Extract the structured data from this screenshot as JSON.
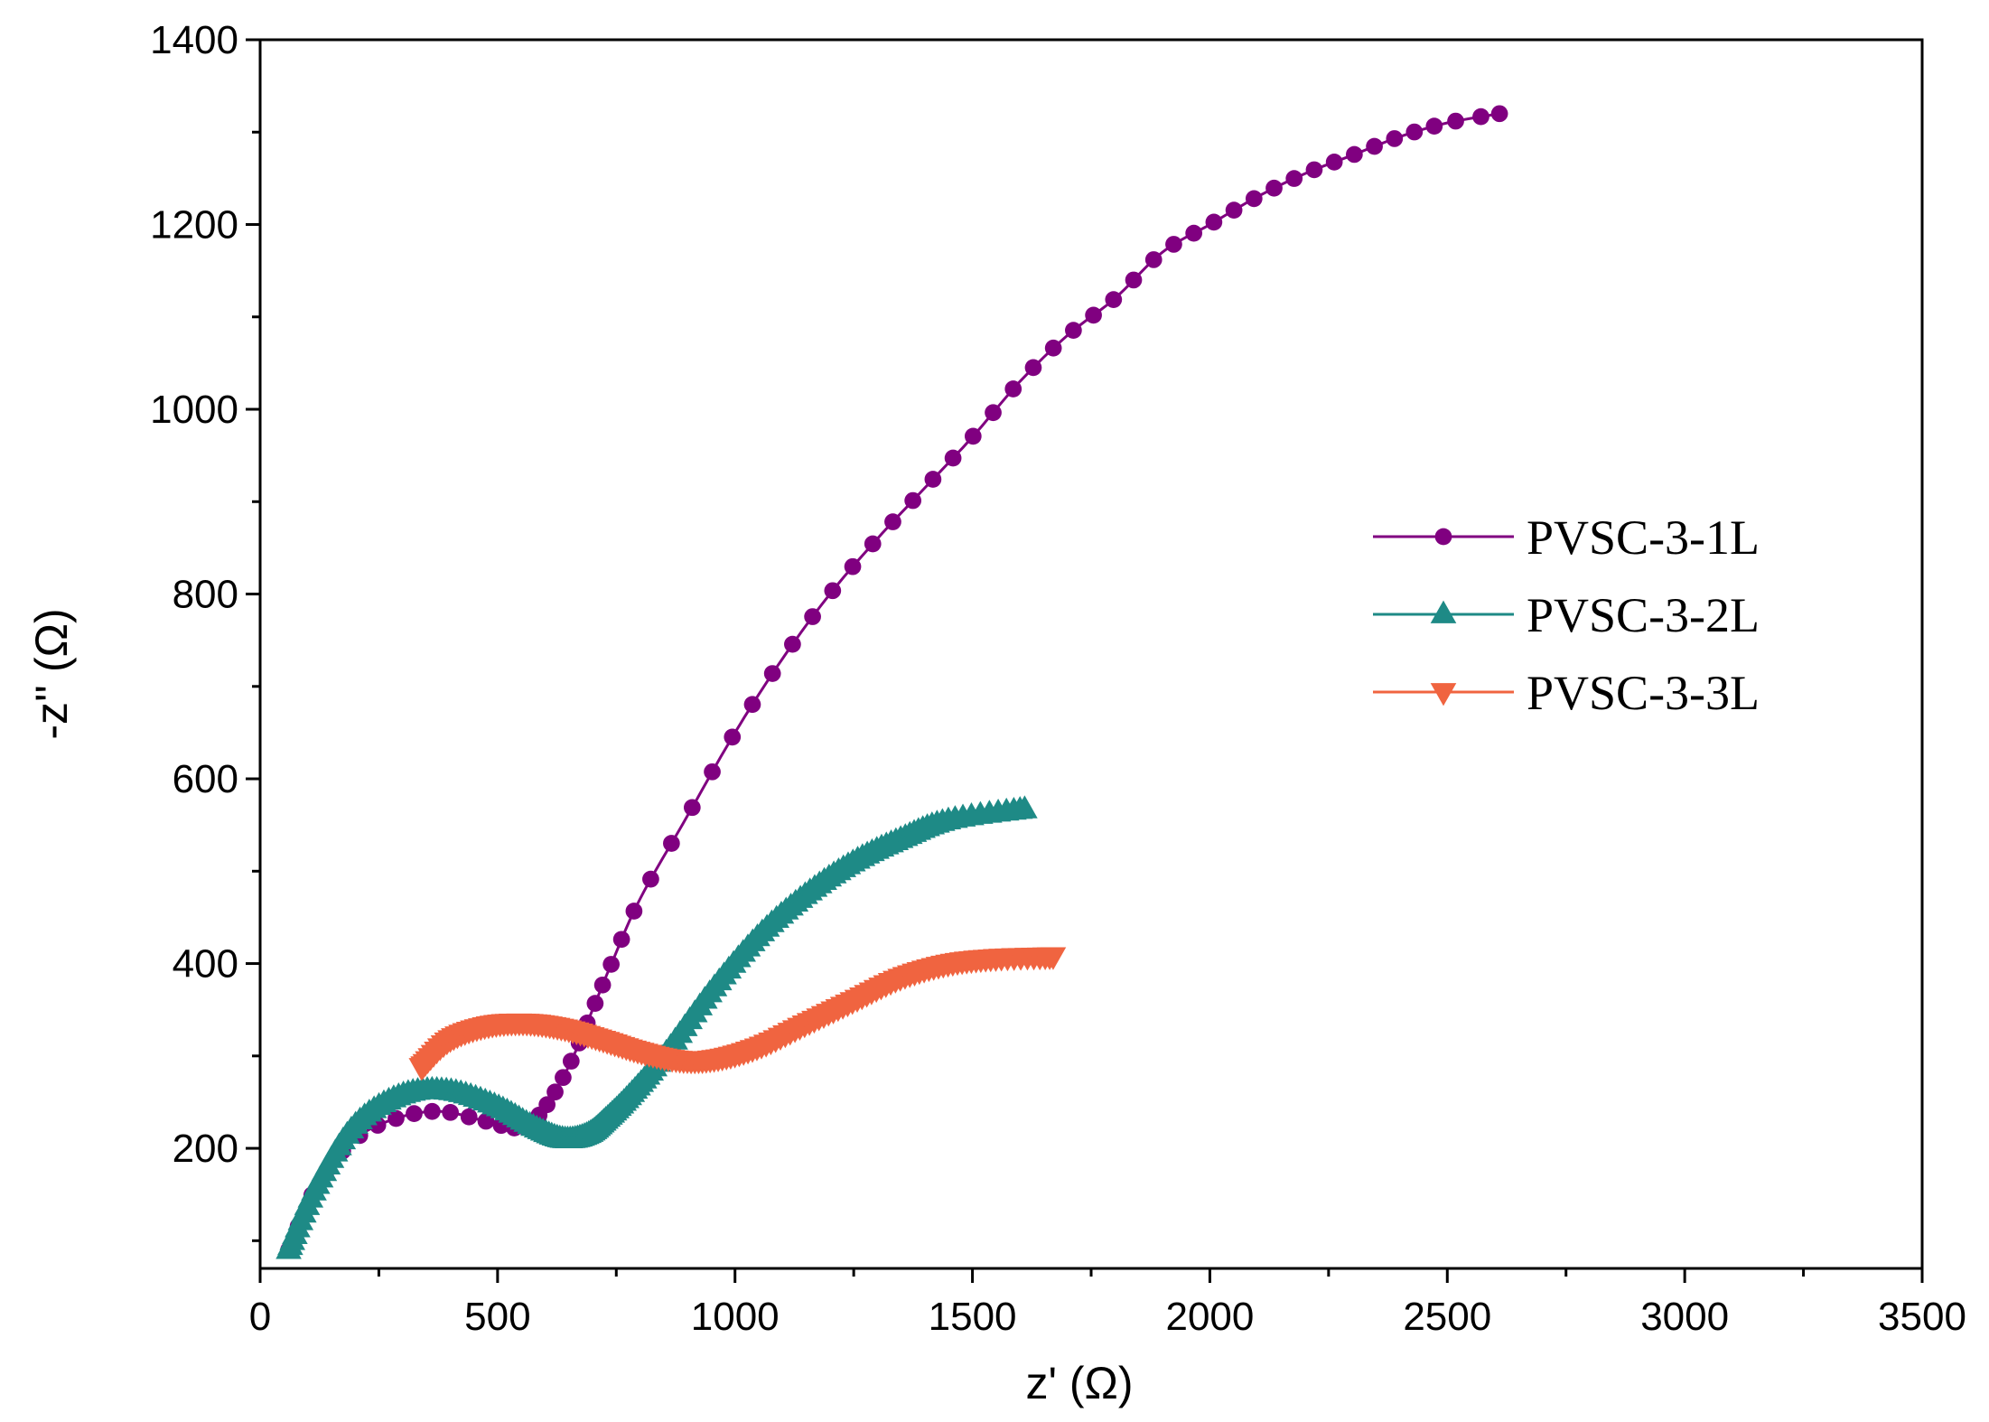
{
  "chart_data": {
    "type": "scatter",
    "title": "",
    "xlabel": "z' (Ω)",
    "ylabel": "-z'' (Ω)",
    "xlim": [
      0,
      3500
    ],
    "ylim": [
      70,
      1400
    ],
    "xticks": [
      0,
      500,
      1000,
      1500,
      2000,
      2500,
      3000,
      3500
    ],
    "xtick_labels": [
      "0",
      "500",
      "1000",
      "1500",
      "2000",
      "2500",
      "3000",
      "3500"
    ],
    "yticks": [
      200,
      400,
      600,
      800,
      1000,
      1200,
      1400
    ],
    "ytick_labels": [
      "200",
      "400",
      "600",
      "800",
      "1000",
      "1200",
      "1400"
    ],
    "grid": false,
    "legend_position": "right",
    "series": [
      {
        "name": "PVSC-3-1L",
        "color": "#800080",
        "marker": "circle",
        "points": [
          [
            60,
            90
          ],
          [
            120,
            160
          ],
          [
            200,
            210
          ],
          [
            290,
            233
          ],
          [
            380,
            240
          ],
          [
            470,
            230
          ],
          [
            540,
            222
          ],
          [
            580,
            232
          ],
          [
            620,
            260
          ],
          [
            660,
            300
          ],
          [
            700,
            350
          ],
          [
            740,
            400
          ],
          [
            800,
            470
          ],
          [
            900,
            560
          ],
          [
            1000,
            650
          ],
          [
            1100,
            730
          ],
          [
            1200,
            800
          ],
          [
            1300,
            860
          ],
          [
            1400,
            915
          ],
          [
            1500,
            970
          ],
          [
            1600,
            1030
          ],
          [
            1700,
            1080
          ],
          [
            1800,
            1120
          ],
          [
            1900,
            1170
          ],
          [
            2000,
            1200
          ],
          [
            2100,
            1230
          ],
          [
            2200,
            1255
          ],
          [
            2300,
            1275
          ],
          [
            2400,
            1295
          ],
          [
            2500,
            1310
          ],
          [
            2610,
            1320
          ]
        ],
        "marker_count": 72
      },
      {
        "name": "PVSC-3-2L",
        "color": "#1E8A86",
        "marker": "triangle-up",
        "points": [
          [
            60,
            90
          ],
          [
            120,
            160
          ],
          [
            200,
            225
          ],
          [
            300,
            258
          ],
          [
            400,
            262
          ],
          [
            500,
            245
          ],
          [
            580,
            222
          ],
          [
            640,
            210
          ],
          [
            690,
            215
          ],
          [
            730,
            232
          ],
          [
            780,
            258
          ],
          [
            850,
            300
          ],
          [
            950,
            370
          ],
          [
            1050,
            430
          ],
          [
            1150,
            475
          ],
          [
            1250,
            510
          ],
          [
            1350,
            535
          ],
          [
            1450,
            555
          ],
          [
            1610,
            567
          ]
        ],
        "marker_count": 180
      },
      {
        "name": "PVSC-3-3L",
        "color": "#F06440",
        "marker": "triangle-down",
        "points": [
          [
            340,
            288
          ],
          [
            400,
            318
          ],
          [
            480,
            333
          ],
          [
            560,
            336
          ],
          [
            640,
            330
          ],
          [
            720,
            318
          ],
          [
            800,
            305
          ],
          [
            880,
            296
          ],
          [
            960,
            297
          ],
          [
            1050,
            310
          ],
          [
            1150,
            335
          ],
          [
            1250,
            360
          ],
          [
            1350,
            385
          ],
          [
            1450,
            400
          ],
          [
            1550,
            406
          ],
          [
            1670,
            408
          ]
        ],
        "marker_count": 150
      }
    ]
  }
}
